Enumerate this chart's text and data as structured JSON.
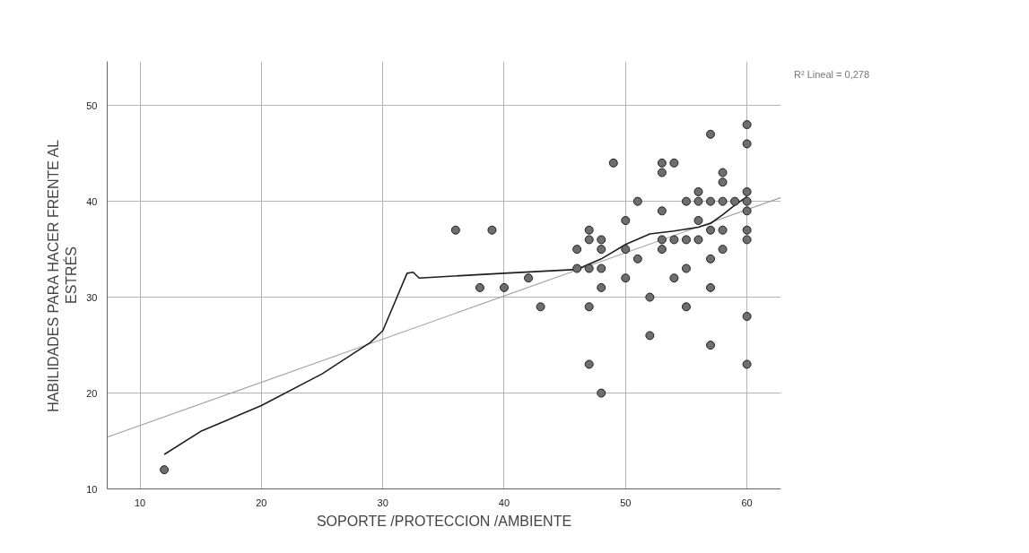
{
  "chart_data": {
    "type": "scatter",
    "xlabel": "SOPORTE /PROTECCION /AMBIENTE",
    "ylabel": "HABILIDADES PARA HACER FRENTE AL\nESTRÉS",
    "annotations": [
      "R² Lineal = 0,278"
    ],
    "xlim": [
      7.3,
      62.8
    ],
    "ylim": [
      10,
      54.6
    ],
    "xticks": [
      10,
      20,
      30,
      40,
      50,
      60
    ],
    "yticks": [
      10,
      20,
      30,
      40,
      50
    ],
    "grid": true,
    "marker": "circle",
    "series": [
      {
        "color": "#6e6e6e",
        "x": [
          12,
          36,
          38,
          39,
          40,
          42,
          43,
          46,
          46,
          47,
          47,
          47,
          47,
          47,
          48,
          48,
          48,
          48,
          48,
          49,
          50,
          50,
          50,
          51,
          51,
          52,
          52,
          53,
          53,
          53,
          53,
          53,
          54,
          54,
          54,
          55,
          55,
          55,
          55,
          56,
          56,
          56,
          56,
          57,
          57,
          57,
          57,
          57,
          57,
          58,
          58,
          58,
          58,
          58,
          59,
          60,
          60,
          60,
          60,
          60,
          60,
          60,
          60,
          60
        ],
        "values": [
          12,
          37,
          31,
          37,
          31,
          32,
          29,
          35,
          33,
          37,
          36,
          33,
          29,
          23,
          36,
          35,
          33,
          31,
          20,
          44,
          38,
          35,
          32,
          40,
          34,
          30,
          26,
          44,
          43,
          39,
          36,
          35,
          44,
          36,
          32,
          40,
          36,
          33,
          29,
          41,
          40,
          38,
          36,
          47,
          40,
          37,
          34,
          31,
          25,
          43,
          42,
          40,
          37,
          35,
          40,
          48,
          46,
          41,
          40,
          39,
          37,
          36,
          28,
          23
        ]
      },
      {
        "type": "line",
        "color": "#a0a0a0",
        "line_style": "solid",
        "marker": "none",
        "x": [
          7.3,
          62.8
        ],
        "values": [
          15.4,
          40.4
        ]
      },
      {
        "type": "line",
        "color": "#1e1e1e",
        "line_style": "solid",
        "marker": "none",
        "x": [
          12,
          15,
          20,
          25,
          29,
          30,
          31,
          32,
          32.5,
          33,
          40,
          46,
          48,
          50,
          52,
          54,
          56,
          57,
          58,
          59,
          60
        ],
        "values": [
          13.6,
          16,
          18.7,
          22,
          25.3,
          26.5,
          29.5,
          32.5,
          32.6,
          32,
          32.5,
          32.9,
          34,
          35.5,
          36.6,
          36.9,
          37.3,
          37.7,
          38.6,
          39.6,
          40.5
        ]
      }
    ]
  }
}
